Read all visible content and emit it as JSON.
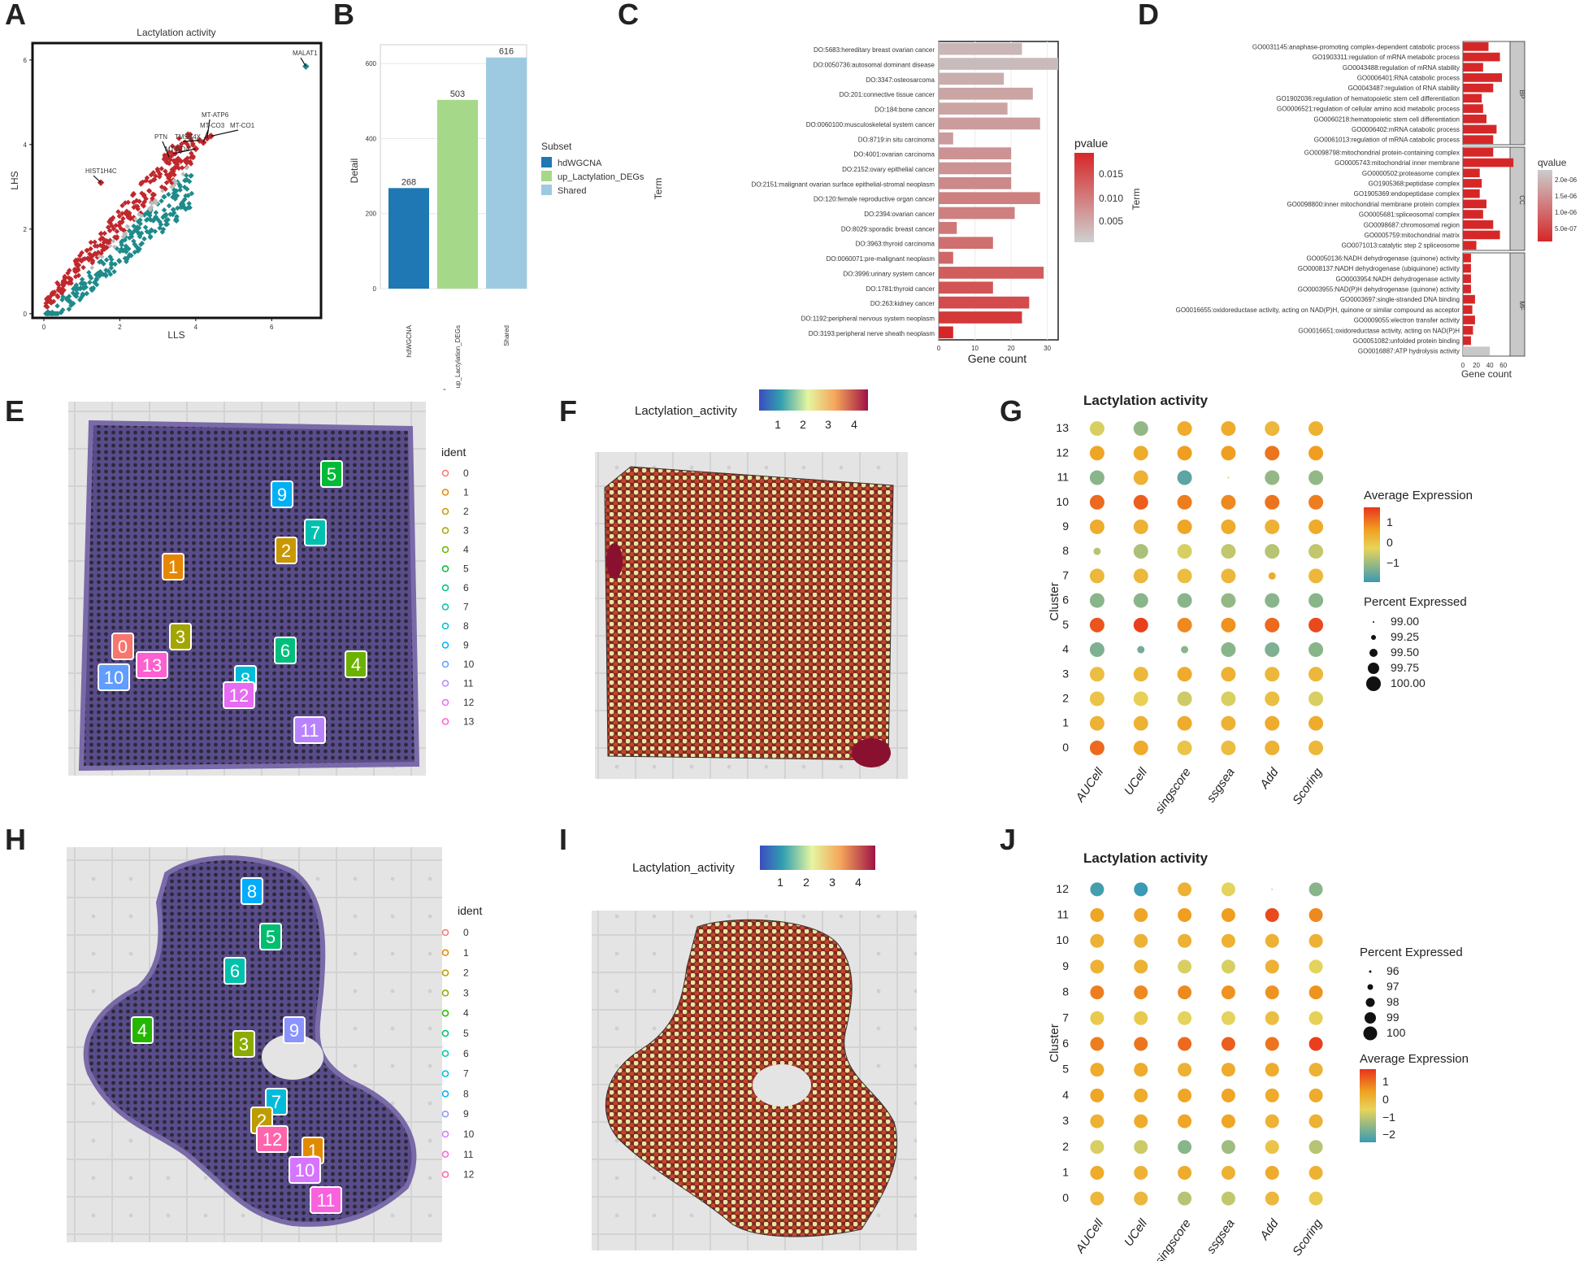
{
  "panel_letters": [
    "A",
    "B",
    "C",
    "D",
    "E",
    "F",
    "G",
    "H",
    "I",
    "J"
  ],
  "colors": {
    "red": "#c0282d",
    "teal": "#1f8a8a",
    "grey": "#bbbbbb",
    "hdwgcna": "#1f78b4",
    "up_lact": "#a6d88a",
    "shared": "#9ecae1",
    "tissue": "#6b5a9c",
    "bg_tile": "#e7e7e7"
  },
  "chart_data": [
    {
      "id": "A",
      "type": "scatter",
      "title": "Lactylation activity",
      "xlabel": "LLS",
      "ylabel": "LHS",
      "xlim": [
        -0.3,
        7.3
      ],
      "ylim": [
        -0.1,
        6.4
      ],
      "xticks": [
        0,
        2,
        4,
        6
      ],
      "yticks": [
        0,
        2,
        4,
        6
      ],
      "labeled_genes": [
        {
          "name": "MALAT1",
          "x": 6.9,
          "y": 5.85
        },
        {
          "name": "MT-ATP6",
          "x": 4.3,
          "y": 4.15
        },
        {
          "name": "MT-CO3",
          "x": 4.2,
          "y": 4.05
        },
        {
          "name": "MT-CO1",
          "x": 4.4,
          "y": 4.2
        },
        {
          "name": "TMSB4X",
          "x": 4.1,
          "y": 4.1
        },
        {
          "name": "MT-ND4",
          "x": 4.0,
          "y": 3.9
        },
        {
          "name": "PTN",
          "x": 3.3,
          "y": 3.7
        },
        {
          "name": "HIST1H4C",
          "x": 1.5,
          "y": 3.1
        }
      ]
    },
    {
      "id": "B",
      "type": "bar",
      "ylabel": "Detail",
      "categories": [
        "hdWGCNA",
        "up_Lactylation_DEGs",
        "Shared"
      ],
      "values": [
        268,
        503,
        616
      ],
      "ylim": [
        0,
        650
      ],
      "yticks": [
        0,
        200,
        400,
        600
      ],
      "legend_title": "Subset",
      "legend": [
        "hdWGCNA",
        "up_Lactylation_DEGs",
        "Shared"
      ],
      "x_dash": "-"
    },
    {
      "id": "C",
      "type": "bar",
      "orientation": "horizontal",
      "xlabel": "Gene count",
      "ylabel": "Term",
      "xticks": [
        0,
        10,
        20,
        30
      ],
      "xlim": [
        0,
        33
      ],
      "legend_title": "pvalue",
      "legend_ticks": [
        "0.015",
        "0.010",
        "0.005"
      ],
      "terms": [
        "DO:5683:hereditary breast ovarian cancer",
        "DO:0050736:autosomal dominant disease",
        "DO:3347:osteosarcoma",
        "DO:201:connective tissue cancer",
        "DO:184:bone cancer",
        "DO:0060100:musculoskeletal system cancer",
        "DO:8719:in situ carcinoma",
        "DO:4001:ovarian carcinoma",
        "DO:2152:ovary epithelial cancer",
        "DO:2151:malignant ovarian surface epithelial-stromal neoplasm",
        "DO:120:female reproductive organ cancer",
        "DO:2394:ovarian cancer",
        "DO:8029:sporadic breast cancer",
        "DO:3963:thyroid carcinoma",
        "DO:0060071:pre-malignant neoplasm",
        "DO:3996:urinary system cancer",
        "DO:1781:thyroid cancer",
        "DO:263:kidney cancer",
        "DO:1192:peripheral nervous system neoplasm",
        "DO:3193:peripheral nerve sheath neoplasm"
      ],
      "values": [
        23,
        33,
        18,
        26,
        19,
        28,
        4,
        20,
        20,
        20,
        28,
        21,
        5,
        15,
        4,
        29,
        15,
        25,
        23,
        4
      ],
      "pvalues": [
        0.002,
        0.0015,
        0.003,
        0.004,
        0.004,
        0.005,
        0.005,
        0.006,
        0.006,
        0.007,
        0.008,
        0.008,
        0.009,
        0.01,
        0.011,
        0.012,
        0.013,
        0.014,
        0.016,
        0.018
      ]
    },
    {
      "id": "D",
      "type": "bar",
      "orientation": "horizontal",
      "xlabel": "Gene count",
      "ylabel": "Term",
      "xticks": [
        0,
        20,
        40,
        60
      ],
      "xlim": [
        0,
        70
      ],
      "legend_title": "qvalue",
      "legend_ticks": [
        "2.0e-06",
        "1.5e-06",
        "1.0e-06",
        "5.0e-07"
      ],
      "facets": [
        {
          "name": "BP",
          "terms": [
            "GO0031145:anaphase-promoting complex-dependent catabolic process",
            "GO1903311:regulation of mRNA metabolic process",
            "GO0043488:regulation of mRNA stability",
            "GO0006401:RNA catabolic process",
            "GO0043487:regulation of RNA stability",
            "GO1902036:regulation of hematopoietic stem cell differentiation",
            "GO0006521:regulation of cellular amino acid metabolic process",
            "GO0060218:hematopoietic stem cell differentiation",
            "GO0006402:mRNA catabolic process",
            "GO0061013:regulation of mRNA catabolic process"
          ],
          "values": [
            38,
            55,
            30,
            58,
            45,
            28,
            30,
            35,
            50,
            45
          ]
        },
        {
          "name": "CC",
          "terms": [
            "GO0098798:mitochondrial protein-containing complex",
            "GO0005743:mitochondrial inner membrane",
            "GO0000502:proteasome complex",
            "GO1905368:peptidase complex",
            "GO1905369:endopeptidase complex",
            "GO0098800:inner mitochondrial membrane protein complex",
            "GO0005681:spliceosomal complex",
            "GO0098687:chromosomal region",
            "GO0005759:mitochondrial matrix",
            "GO0071013:catalytic step 2 spliceosome"
          ],
          "values": [
            45,
            75,
            25,
            28,
            25,
            35,
            30,
            45,
            55,
            20
          ]
        },
        {
          "name": "MF",
          "terms": [
            "GO0050136:NADH dehydrogenase (quinone) activity",
            "GO0008137:NADH dehydrogenase (ubiquinone) activity",
            "GO0003954:NADH dehydrogenase activity",
            "GO0003955:NAD(P)H dehydrogenase (quinone) activity",
            "GO0003697:single-stranded DNA binding",
            "GO0016655:oxidoreductase activity, acting on NAD(P)H, quinone or similar compound as acceptor",
            "GO0009055:electron transfer activity",
            "GO0016651:oxidoreductase activity, acting on NAD(P)H",
            "GO0051082:unfolded protein binding",
            "GO0016887:ATP hydrolysis activity"
          ],
          "values": [
            12,
            12,
            12,
            12,
            18,
            14,
            18,
            15,
            12,
            40
          ]
        }
      ]
    },
    {
      "id": "E",
      "type": "spatial_clusters",
      "legend_title": "ident",
      "clusters": [
        "0",
        "1",
        "2",
        "3",
        "4",
        "5",
        "6",
        "7",
        "8",
        "9",
        "10",
        "11",
        "12",
        "13"
      ],
      "cluster_colors": [
        "#f8766d",
        "#e58700",
        "#c99800",
        "#a3a500",
        "#6bb100",
        "#00ba38",
        "#00bf7d",
        "#00c0af",
        "#00bcd8",
        "#00b0f6",
        "#619cff",
        "#b983ff",
        "#e76bf3",
        "#fd61d1"
      ]
    },
    {
      "id": "F",
      "type": "spatial_feature",
      "legend_title": "Lactylation_activity",
      "legend_ticks": [
        "1",
        "2",
        "3",
        "4"
      ]
    },
    {
      "id": "G",
      "type": "dotplot",
      "title": "Lactylation activity",
      "ylabel": "Cluster",
      "methods": [
        "AUCell",
        "UCell",
        "singscore",
        "ssgsea",
        "Add",
        "Scoring"
      ],
      "clusters": [
        "0",
        "1",
        "2",
        "3",
        "4",
        "5",
        "6",
        "7",
        "8",
        "9",
        "10",
        "11",
        "12",
        "13"
      ],
      "avg_expression": [
        [
          1.2,
          0.5,
          0.1,
          0.2,
          0.4,
          0.3
        ],
        [
          0.4,
          0.4,
          0.5,
          0.4,
          0.5,
          0.5
        ],
        [
          0.1,
          -0.1,
          -0.4,
          -0.3,
          0.2,
          -0.3
        ],
        [
          0.2,
          0.3,
          0.5,
          0.4,
          0.3,
          0.3
        ],
        [
          -1.1,
          -1.2,
          -1.0,
          -1.0,
          -1.1,
          -1.0
        ],
        [
          1.4,
          1.6,
          0.9,
          0.8,
          1.2,
          1.5
        ],
        [
          -1.0,
          -1.0,
          -1.0,
          -0.9,
          -1.0,
          -1.0
        ],
        [
          0.3,
          0.3,
          0.2,
          0.3,
          0.5,
          0.3
        ],
        [
          -0.6,
          -0.7,
          -0.3,
          -0.5,
          -0.6,
          -0.5
        ],
        [
          0.5,
          0.4,
          0.6,
          0.5,
          0.4,
          0.5
        ],
        [
          1.2,
          1.3,
          1.0,
          0.9,
          1.1,
          1.0
        ],
        [
          -1.0,
          0.4,
          -1.4,
          0.0,
          -0.9,
          -0.9
        ],
        [
          0.6,
          0.5,
          0.7,
          0.7,
          1.1,
          0.7
        ],
        [
          -0.3,
          -0.9,
          0.5,
          0.5,
          0.3,
          0.4
        ]
      ],
      "pct_expressed": [
        [
          100,
          100,
          100,
          100,
          100,
          100
        ],
        [
          100,
          100,
          100,
          100,
          100,
          100
        ],
        [
          100,
          100,
          100,
          100,
          100,
          100
        ],
        [
          100,
          100,
          100,
          100,
          100,
          100
        ],
        [
          100,
          99.5,
          99.5,
          100,
          100,
          100
        ],
        [
          100,
          100,
          100,
          100,
          100,
          100
        ],
        [
          100,
          100,
          100,
          100,
          100,
          100
        ],
        [
          100,
          100,
          100,
          100,
          99.5,
          100
        ],
        [
          99.5,
          100,
          100,
          100,
          100,
          100
        ],
        [
          100,
          100,
          100,
          100,
          100,
          100
        ],
        [
          100,
          100,
          100,
          100,
          100,
          100
        ],
        [
          100,
          100,
          100,
          99.0,
          100,
          100
        ],
        [
          100,
          100,
          100,
          100,
          100,
          100
        ],
        [
          100,
          100,
          100,
          100,
          100,
          100
        ]
      ],
      "legend_avg_title": "Average Expression",
      "legend_avg_ticks": [
        "1",
        "0",
        "−1"
      ],
      "legend_pct_title": "Percent Expressed",
      "legend_pct_ticks": [
        "99.00",
        "99.25",
        "99.50",
        "99.75",
        "100.00"
      ]
    },
    {
      "id": "H",
      "type": "spatial_clusters",
      "legend_title": "ident",
      "clusters": [
        "0",
        "1",
        "2",
        "3",
        "4",
        "5",
        "6",
        "7",
        "8",
        "9",
        "10",
        "11",
        "12"
      ],
      "cluster_colors": [
        "#f8766d",
        "#e18a00",
        "#be9c00",
        "#8cab00",
        "#24b700",
        "#00be70",
        "#00c1ab",
        "#00bbda",
        "#00acfc",
        "#8b93ff",
        "#d575fe",
        "#f962dd",
        "#ff65ac"
      ]
    },
    {
      "id": "I",
      "type": "spatial_feature",
      "legend_title": "Lactylation_activity",
      "legend_ticks": [
        "1",
        "2",
        "3",
        "4"
      ]
    },
    {
      "id": "J",
      "type": "dotplot",
      "title": "Lactylation activity",
      "ylabel": "Cluster",
      "methods": [
        "AUCell",
        "UCell",
        "singscore",
        "ssgsea",
        "Add",
        "Scoring"
      ],
      "clusters": [
        "0",
        "1",
        "2",
        "3",
        "4",
        "5",
        "6",
        "7",
        "8",
        "9",
        "10",
        "11",
        "12"
      ],
      "avg_expression": [
        [
          0.3,
          0.3,
          -0.6,
          -0.5,
          0.3,
          0.0
        ],
        [
          0.5,
          0.4,
          0.5,
          0.4,
          0.5,
          0.4
        ],
        [
          -0.3,
          -0.4,
          -1.0,
          -0.8,
          0.1,
          -0.6
        ],
        [
          0.4,
          0.5,
          0.6,
          0.6,
          0.4,
          0.4
        ],
        [
          0.6,
          0.5,
          0.6,
          0.6,
          0.5,
          0.5
        ],
        [
          0.5,
          0.5,
          0.4,
          0.5,
          0.5,
          0.4
        ],
        [
          1.0,
          1.1,
          1.2,
          1.3,
          1.1,
          1.6
        ],
        [
          0.0,
          0.0,
          -0.2,
          -0.2,
          0.2,
          -0.1
        ],
        [
          1.0,
          0.9,
          0.9,
          0.8,
          0.8,
          0.8
        ],
        [
          0.4,
          0.4,
          -0.3,
          -0.3,
          0.4,
          -0.2
        ],
        [
          0.4,
          0.4,
          0.4,
          0.4,
          0.4,
          0.4
        ],
        [
          0.6,
          0.6,
          0.7,
          0.7,
          1.5,
          0.9
        ],
        [
          -1.6,
          -1.7,
          0.4,
          -0.2,
          0.0,
          -1.0
        ]
      ],
      "pct_expressed": [
        [
          100,
          100,
          100,
          100,
          100,
          100
        ],
        [
          100,
          100,
          100,
          100,
          100,
          100
        ],
        [
          100,
          100,
          100,
          100,
          100,
          100
        ],
        [
          100,
          100,
          100,
          100,
          100,
          100
        ],
        [
          100,
          100,
          100,
          100,
          100,
          100
        ],
        [
          100,
          100,
          100,
          100,
          100,
          100
        ],
        [
          100,
          100,
          100,
          100,
          100,
          100
        ],
        [
          100,
          100,
          100,
          100,
          100,
          100
        ],
        [
          100,
          100,
          100,
          100,
          100,
          100
        ],
        [
          100,
          100,
          100,
          100,
          100,
          100
        ],
        [
          100,
          100,
          100,
          100,
          100,
          100
        ],
        [
          100,
          100,
          100,
          100,
          100,
          100
        ],
        [
          100,
          100,
          100,
          100,
          96,
          100
        ]
      ],
      "legend_pct_title": "Percent Expressed",
      "legend_pct_ticks": [
        "96",
        "97",
        "98",
        "99",
        "100"
      ],
      "legend_avg_title": "Average Expression",
      "legend_avg_ticks": [
        "1",
        "0",
        "−1",
        "−2"
      ]
    }
  ]
}
